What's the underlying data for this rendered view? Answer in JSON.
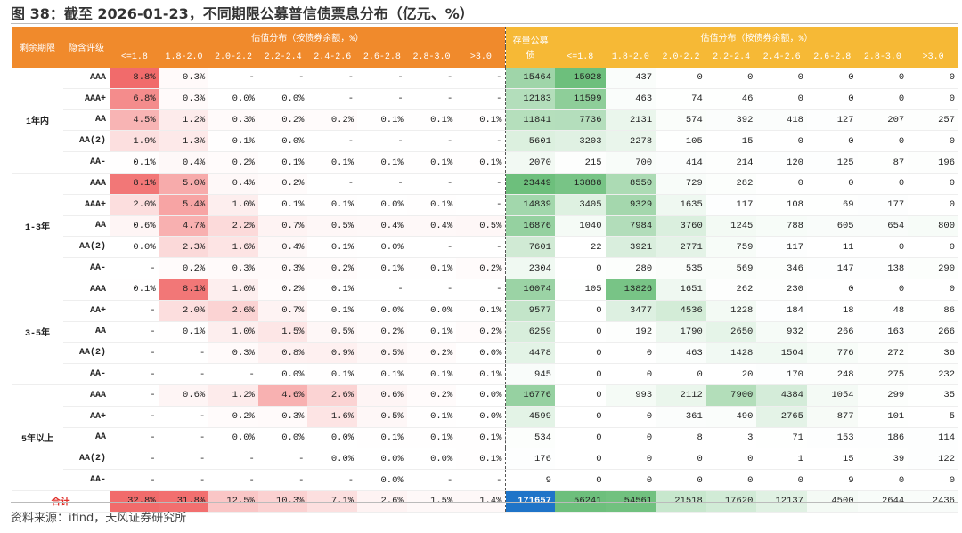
{
  "header": {
    "title": "图 38：截至 2026-01-23，不同期限公募普信债票息分布（亿元、%）"
  },
  "table": {
    "left_header": {
      "term": "剩余期限",
      "rating": "隐含评级",
      "group": "估值分布（按债券余额，%）",
      "columns": [
        "<=1.8",
        "1.8-2.0",
        "2.0-2.2",
        "2.2-2.4",
        "2.4-2.6",
        "2.6-2.8",
        "2.8-3.0",
        ">3.0"
      ]
    },
    "right_header": {
      "total": "存量公募债",
      "group": "估值分布（按债券余额，%）",
      "columns": [
        "<=1.8",
        "1.8-2.0",
        "2.0-2.2",
        "2.2-2.4",
        "2.4-2.6",
        "2.6-2.8",
        "2.8-3.0",
        ">3.0"
      ]
    },
    "groups": [
      {
        "term": "1年内",
        "rows": [
          {
            "rating": "AAA",
            "dist": [
              "8.8%",
              "0.3%",
              "-",
              "-",
              "-",
              "-",
              "-",
              "-"
            ],
            "total": 15464,
            "amounts": [
              15028,
              437,
              0,
              0,
              0,
              0,
              0,
              0
            ]
          },
          {
            "rating": "AAA+",
            "dist": [
              "6.8%",
              "0.3%",
              "0.0%",
              "0.0%",
              "-",
              "-",
              "-",
              "-"
            ],
            "total": 12183,
            "amounts": [
              11599,
              463,
              74,
              46,
              0,
              0,
              0,
              0
            ]
          },
          {
            "rating": "AA",
            "dist": [
              "4.5%",
              "1.2%",
              "0.3%",
              "0.2%",
              "0.2%",
              "0.1%",
              "0.1%",
              "0.1%"
            ],
            "total": 11841,
            "amounts": [
              7736,
              2131,
              574,
              392,
              418,
              127,
              207,
              257
            ]
          },
          {
            "rating": "AA(2)",
            "dist": [
              "1.9%",
              "1.3%",
              "0.1%",
              "0.0%",
              "-",
              "-",
              "-",
              "-"
            ],
            "total": 5601,
            "amounts": [
              3203,
              2278,
              105,
              15,
              0,
              0,
              0,
              0
            ]
          },
          {
            "rating": "AA-",
            "dist": [
              "0.1%",
              "0.4%",
              "0.2%",
              "0.1%",
              "0.1%",
              "0.1%",
              "0.1%",
              "0.1%"
            ],
            "total": 2070,
            "amounts": [
              215,
              700,
              414,
              214,
              120,
              125,
              87,
              196
            ]
          }
        ]
      },
      {
        "term": "1-3年",
        "rows": [
          {
            "rating": "AAA",
            "dist": [
              "8.1%",
              "5.0%",
              "0.4%",
              "0.2%",
              "-",
              "-",
              "-",
              "-"
            ],
            "total": 23449,
            "amounts": [
              13888,
              8550,
              729,
              282,
              0,
              0,
              0,
              0
            ]
          },
          {
            "rating": "AAA+",
            "dist": [
              "2.0%",
              "5.4%",
              "1.0%",
              "0.1%",
              "0.1%",
              "0.0%",
              "0.1%",
              "-"
            ],
            "total": 14839,
            "amounts": [
              3405,
              9329,
              1635,
              117,
              108,
              69,
              177,
              0
            ]
          },
          {
            "rating": "AA",
            "dist": [
              "0.6%",
              "4.7%",
              "2.2%",
              "0.7%",
              "0.5%",
              "0.4%",
              "0.4%",
              "0.5%"
            ],
            "total": 16876,
            "amounts": [
              1040,
              7984,
              3760,
              1245,
              788,
              605,
              654,
              800
            ]
          },
          {
            "rating": "AA(2)",
            "dist": [
              "0.0%",
              "2.3%",
              "1.6%",
              "0.4%",
              "0.1%",
              "0.0%",
              "-",
              "-"
            ],
            "total": 7601,
            "amounts": [
              22,
              3921,
              2771,
              759,
              117,
              11,
              0,
              0
            ]
          },
          {
            "rating": "AA-",
            "dist": [
              "-",
              "0.2%",
              "0.3%",
              "0.3%",
              "0.2%",
              "0.1%",
              "0.1%",
              "0.2%"
            ],
            "total": 2304,
            "amounts": [
              0,
              280,
              535,
              569,
              346,
              147,
              138,
              290
            ]
          }
        ]
      },
      {
        "term": "3-5年",
        "rows": [
          {
            "rating": "AAA",
            "dist": [
              "0.1%",
              "8.1%",
              "1.0%",
              "0.2%",
              "0.1%",
              "-",
              "-",
              "-"
            ],
            "total": 16074,
            "amounts": [
              105,
              13826,
              1651,
              262,
              230,
              0,
              0,
              0
            ]
          },
          {
            "rating": "AA+",
            "dist": [
              "-",
              "2.0%",
              "2.6%",
              "0.7%",
              "0.1%",
              "0.0%",
              "0.0%",
              "0.1%"
            ],
            "total": 9577,
            "amounts": [
              0,
              3477,
              4536,
              1228,
              184,
              18,
              48,
              86
            ]
          },
          {
            "rating": "AA",
            "dist": [
              "-",
              "0.1%",
              "1.0%",
              "1.5%",
              "0.5%",
              "0.2%",
              "0.1%",
              "0.2%"
            ],
            "total": 6259,
            "amounts": [
              0,
              192,
              1790,
              2650,
              932,
              266,
              163,
              266
            ]
          },
          {
            "rating": "AA(2)",
            "dist": [
              "-",
              "-",
              "0.3%",
              "0.8%",
              "0.9%",
              "0.5%",
              "0.2%",
              "0.0%"
            ],
            "total": 4478,
            "amounts": [
              0,
              0,
              463,
              1428,
              1504,
              776,
              272,
              36
            ]
          },
          {
            "rating": "AA-",
            "dist": [
              "-",
              "-",
              "-",
              "0.0%",
              "0.1%",
              "0.1%",
              "0.1%",
              "0.1%"
            ],
            "total": 945,
            "amounts": [
              0,
              0,
              0,
              20,
              170,
              248,
              275,
              232
            ]
          }
        ]
      },
      {
        "term": "5年以上",
        "rows": [
          {
            "rating": "AAA",
            "dist": [
              "-",
              "0.6%",
              "1.2%",
              "4.6%",
              "2.6%",
              "0.6%",
              "0.2%",
              "0.0%"
            ],
            "total": 16776,
            "amounts": [
              0,
              993,
              2112,
              7900,
              4384,
              1054,
              299,
              35
            ]
          },
          {
            "rating": "AA+",
            "dist": [
              "-",
              "-",
              "0.2%",
              "0.3%",
              "1.6%",
              "0.5%",
              "0.1%",
              "0.0%"
            ],
            "total": 4599,
            "amounts": [
              0,
              0,
              361,
              490,
              2765,
              877,
              101,
              5
            ]
          },
          {
            "rating": "AA",
            "dist": [
              "-",
              "-",
              "0.0%",
              "0.0%",
              "0.0%",
              "0.1%",
              "0.1%",
              "0.1%"
            ],
            "total": 534,
            "amounts": [
              0,
              0,
              8,
              3,
              71,
              153,
              186,
              114
            ]
          },
          {
            "rating": "AA(2)",
            "dist": [
              "-",
              "-",
              "-",
              "-",
              "0.0%",
              "0.0%",
              "0.0%",
              "0.1%"
            ],
            "total": 176,
            "amounts": [
              0,
              0,
              0,
              0,
              1,
              15,
              39,
              122
            ]
          },
          {
            "rating": "AA-",
            "dist": [
              "-",
              "-",
              "-",
              "-",
              "-",
              "0.0%",
              "-",
              "-"
            ],
            "total": 9,
            "amounts": [
              0,
              0,
              0,
              0,
              0,
              9,
              0,
              0
            ]
          }
        ]
      }
    ],
    "total_row": {
      "label": "合计",
      "dist": [
        "32.8%",
        "31.8%",
        "12.5%",
        "10.3%",
        "7.1%",
        "2.6%",
        "1.5%",
        "1.4%"
      ],
      "total": 171657,
      "amounts": [
        56241,
        54561,
        21518,
        17620,
        12137,
        4500,
        2644,
        2436
      ]
    }
  },
  "footer": {
    "source": "资料来源：ifind，天风证券研究所"
  }
}
